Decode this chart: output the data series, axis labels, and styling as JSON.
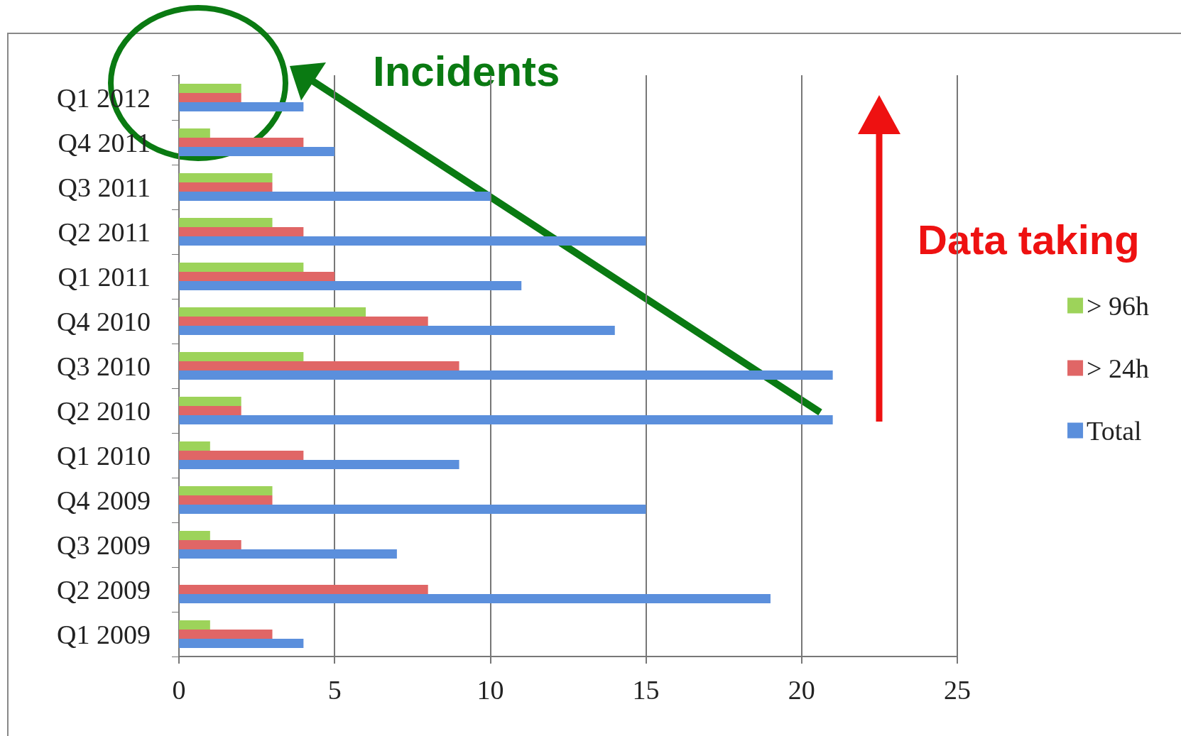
{
  "chart_data": {
    "type": "bar",
    "orientation": "horizontal",
    "categories": [
      "Q1 2012",
      "Q4 2011",
      "Q3 2011",
      "Q2 2011",
      "Q1 2011",
      "Q4 2010",
      "Q3 2010",
      "Q2 2010",
      "Q1 2010",
      "Q4 2009",
      "Q3 2009",
      "Q2 2009",
      "Q1 2009"
    ],
    "series": [
      {
        "name": "> 96h",
        "color": "#9dd35a",
        "values": [
          2,
          1,
          3,
          3,
          4,
          6,
          4,
          2,
          1,
          3,
          1,
          0,
          1
        ]
      },
      {
        "name": "> 24h",
        "color": "#e06666",
        "values": [
          2,
          4,
          3,
          4,
          5,
          8,
          9,
          2,
          4,
          3,
          2,
          8,
          3
        ]
      },
      {
        "name": "Total",
        "color": "#5b8fdc",
        "values": [
          4,
          5,
          10,
          15,
          11,
          14,
          21,
          21,
          9,
          15,
          7,
          19,
          4
        ]
      }
    ],
    "xlim": [
      0,
      25
    ],
    "xticks": [
      0,
      5,
      10,
      15,
      20,
      25
    ],
    "grid": "x",
    "legend": "right",
    "annotations": [
      "Incidents",
      "Data taking"
    ]
  }
}
